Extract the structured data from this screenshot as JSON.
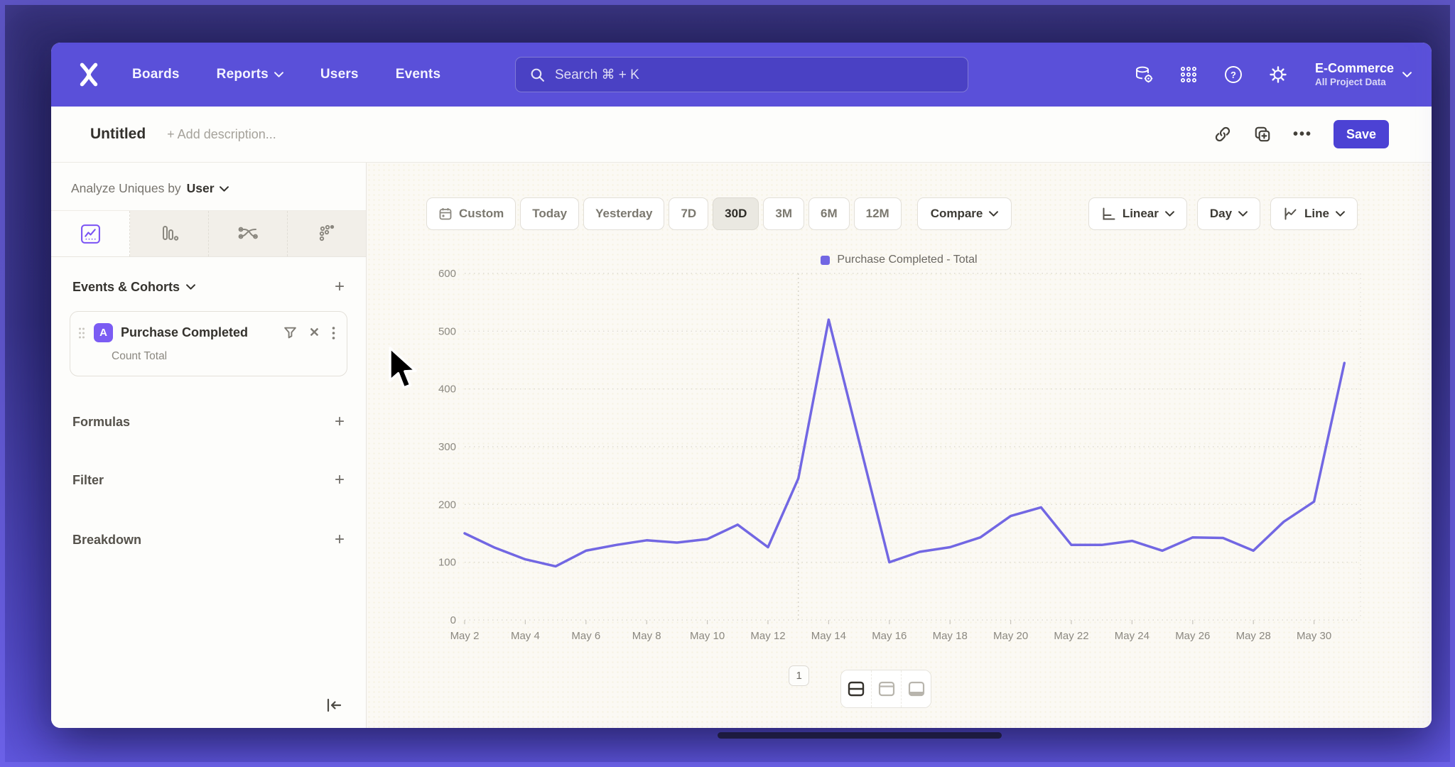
{
  "topnav": {
    "items": [
      "Boards",
      "Reports",
      "Users",
      "Events"
    ],
    "search_placeholder": "Search  ⌘ + K",
    "project": {
      "name": "E-Commerce",
      "scope": "All Project Data"
    }
  },
  "titlebar": {
    "title": "Untitled",
    "add_description": "+ Add description...",
    "save_label": "Save"
  },
  "sidebar": {
    "analyze_label": "Analyze Uniques by",
    "analyze_value": "User",
    "view_tabs": [
      "line-chart",
      "bar-chart",
      "flow",
      "scatter"
    ],
    "events_section": "Events & Cohorts",
    "event_card": {
      "badge": "A",
      "title": "Purchase Completed",
      "subtitle": "Count Total"
    },
    "sections": {
      "formulas": "Formulas",
      "filter": "Filter",
      "breakdown": "Breakdown"
    }
  },
  "toolbar": {
    "ranges": [
      "Custom",
      "Today",
      "Yesterday",
      "7D",
      "30D",
      "3M",
      "6M",
      "12M"
    ],
    "active_range": "30D",
    "compare": "Compare",
    "scale": "Linear",
    "granularity": "Day",
    "chart_type": "Line"
  },
  "chart_data": {
    "type": "line",
    "title": "",
    "categories": [
      "May 2",
      "May 3",
      "May 4",
      "May 5",
      "May 6",
      "May 7",
      "May 8",
      "May 9",
      "May 10",
      "May 11",
      "May 12",
      "May 13",
      "May 14",
      "May 15",
      "May 16",
      "May 17",
      "May 18",
      "May 19",
      "May 20",
      "May 21",
      "May 22",
      "May 23",
      "May 24",
      "May 25",
      "May 26",
      "May 27",
      "May 28",
      "May 29",
      "May 30",
      "May 31"
    ],
    "series": [
      {
        "name": "Purchase Completed - Total",
        "values": [
          150,
          125,
          105,
          93,
          120,
          130,
          138,
          134,
          140,
          165,
          126,
          245,
          520,
          310,
          100,
          118,
          126,
          143,
          180,
          195,
          130,
          130,
          137,
          120,
          143,
          142,
          120,
          170,
          205,
          445
        ]
      }
    ],
    "ylim": [
      0,
      600
    ],
    "yticks": [
      0,
      100,
      200,
      300,
      400,
      500,
      600
    ],
    "x_label_every": 2,
    "grid": "dotted horizontal",
    "legend_position": "top-center",
    "annotation": {
      "index": 11,
      "label": "1"
    },
    "line_color": "#7267e3"
  },
  "bottom": {
    "layout_toggles": [
      "split-horizontal",
      "chart-only-top",
      "table-bottom"
    ]
  },
  "icons": {
    "ellipsis": "•••",
    "plus": "+",
    "close": "✕",
    "kebab": "⋮"
  },
  "colors": {
    "nav_purple": "#5a50d9",
    "accent": "#4c42d4",
    "line": "#7267e3",
    "badge_purple": "#7b5cf3",
    "chart_bg": "#fbf9f4"
  }
}
